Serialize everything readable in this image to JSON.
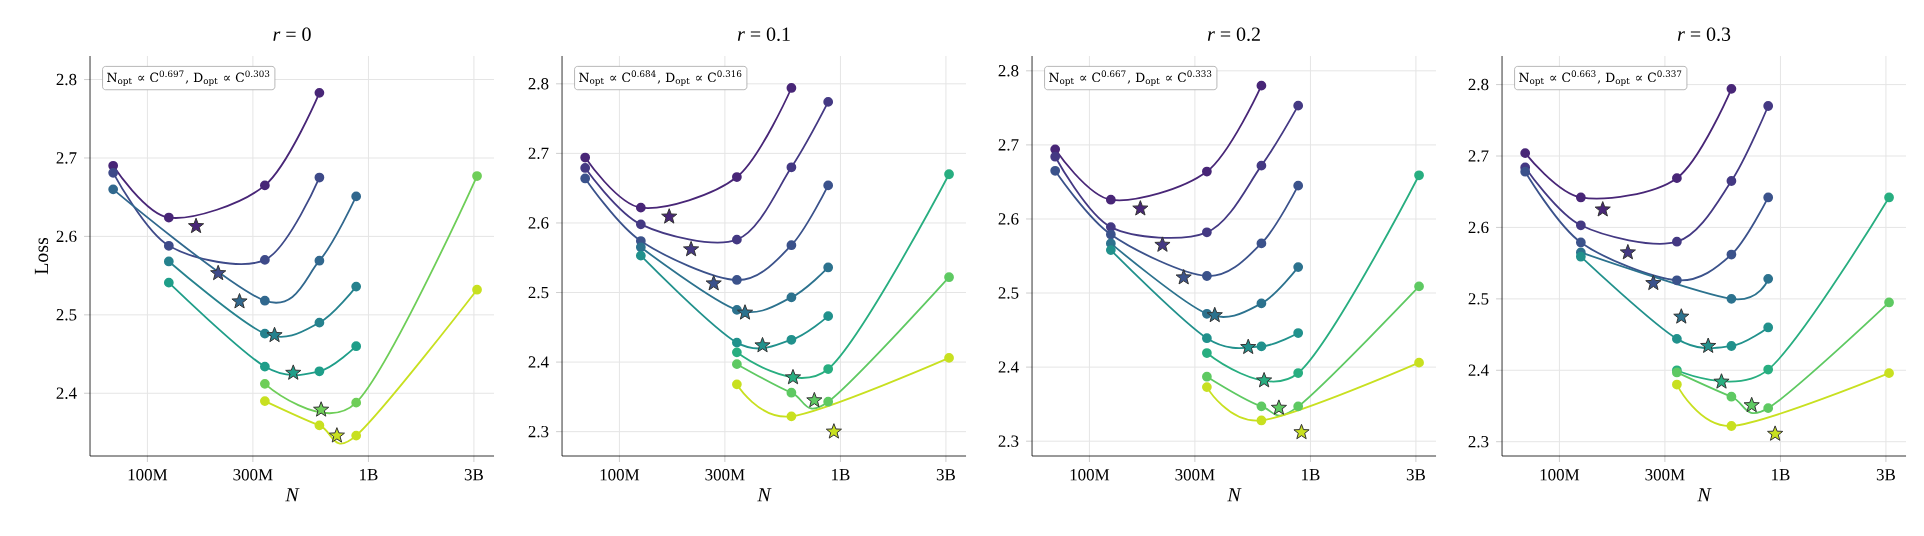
{
  "chart_data": [
    {
      "type": "line",
      "title": "*r* = 0",
      "xlabel": "N",
      "ylabel": "Loss",
      "log": "x",
      "grid": true,
      "marker": "circle",
      "xlim": [
        55000000,
        3700000000
      ],
      "xticks": [
        {
          "value": 100000000,
          "label": "100M"
        },
        {
          "value": 300000000,
          "label": "300M"
        },
        {
          "value": 1000000000,
          "label": "1B"
        },
        {
          "value": 3000000000,
          "label": "3B"
        }
      ],
      "ylim": [
        2.32,
        2.83
      ],
      "yticks": [
        2.4,
        2.5,
        2.6,
        2.7,
        2.8
      ],
      "annotations": [
        "N$_{opt}$ ∝ C$^{0.697}$,  D$_{opt}$ ∝ C$^{0.303}$"
      ],
      "series": [
        {
          "color": "#482677",
          "x": [
            70000000,
            125000000,
            340000000,
            600000000
          ],
          "values": [
            2.69,
            2.624,
            2.665,
            2.783
          ]
        },
        {
          "color": "#3e4a89",
          "x": [
            70000000,
            125000000,
            340000000,
            600000000
          ],
          "values": [
            2.681,
            2.588,
            2.57,
            2.675
          ]
        },
        {
          "color": "#31688e",
          "x": [
            70000000,
            125000000,
            340000000,
            600000000,
            880000000
          ],
          "values": [
            2.66,
            null,
            2.518,
            2.569,
            2.651
          ]
        },
        {
          "color": "#26828e",
          "x": [
            125000000,
            340000000,
            600000000,
            880000000
          ],
          "values": [
            2.568,
            2.476,
            2.49,
            2.536
          ]
        },
        {
          "color": "#1f9e89",
          "x": [
            125000000,
            340000000,
            600000000,
            880000000
          ],
          "values": [
            2.541,
            2.434,
            2.428,
            2.46
          ]
        },
        {
          "color": "#6ece58",
          "x": [
            340000000,
            880000000,
            3100000000
          ],
          "values": [
            2.412,
            2.388,
            2.677
          ]
        },
        {
          "color": "#c8e020",
          "x": [
            340000000,
            600000000,
            880000000,
            3100000000
          ],
          "values": [
            2.39,
            2.359,
            2.346,
            2.532
          ]
        },
        {
          "type": "scatter",
          "marker": "star",
          "x": [
            166000000,
            209000000,
            261000000,
            376000000,
            457000000,
            611000000,
            720000000
          ],
          "values": [
            2.613,
            2.553,
            2.517,
            2.474,
            2.426,
            2.379,
            2.346
          ],
          "colors": [
            "#482677",
            "#3e4a89",
            "#31688e",
            "#26828e",
            "#1f9e89",
            "#6ece58",
            "#c8e020"
          ]
        }
      ]
    },
    {
      "type": "line",
      "title": "*r* = 0.1",
      "xlabel": "N",
      "log": "x",
      "grid": true,
      "marker": "circle",
      "xlim": [
        55000000,
        3700000000
      ],
      "xticks": [
        {
          "value": 100000000,
          "label": "100M"
        },
        {
          "value": 300000000,
          "label": "300M"
        },
        {
          "value": 1000000000,
          "label": "1B"
        },
        {
          "value": 3000000000,
          "label": "3B"
        }
      ],
      "ylim": [
        2.265,
        2.84
      ],
      "yticks": [
        2.3,
        2.4,
        2.5,
        2.6,
        2.7,
        2.8
      ],
      "annotations": [
        "N$_{opt}$ ∝ C$^{0.684}$,  D$_{opt}$ ∝ C$^{0.316}$"
      ],
      "series": [
        {
          "color": "#482677",
          "x": [
            70000000,
            125000000,
            340000000,
            600000000
          ],
          "values": [
            2.694,
            2.622,
            2.666,
            2.794
          ]
        },
        {
          "color": "#443983",
          "x": [
            70000000,
            125000000,
            340000000,
            600000000,
            880000000
          ],
          "values": [
            2.679,
            2.598,
            2.576,
            2.68,
            2.774
          ]
        },
        {
          "color": "#3b528b",
          "x": [
            70000000,
            125000000,
            340000000,
            600000000,
            880000000
          ],
          "values": [
            2.664,
            2.574,
            2.518,
            2.568,
            2.654
          ]
        },
        {
          "color": "#2c728e",
          "x": [
            125000000,
            340000000,
            600000000,
            880000000
          ],
          "values": [
            2.565,
            2.475,
            2.493,
            2.536
          ]
        },
        {
          "color": "#21918c",
          "x": [
            125000000,
            340000000,
            600000000,
            880000000
          ],
          "values": [
            2.553,
            2.428,
            2.432,
            2.466
          ]
        },
        {
          "color": "#28ae80",
          "x": [
            340000000,
            880000000,
            3100000000
          ],
          "values": [
            2.414,
            2.39,
            2.67
          ]
        },
        {
          "color": "#5ec962",
          "x": [
            340000000,
            600000000,
            880000000,
            3100000000
          ],
          "values": [
            2.397,
            2.356,
            2.343,
            2.522
          ]
        },
        {
          "color": "#c8e020",
          "x": [
            340000000,
            600000000,
            3100000000
          ],
          "values": [
            2.368,
            2.322,
            2.406
          ]
        },
        {
          "type": "scatter",
          "marker": "star",
          "x": [
            168000000,
            211000000,
            267000000,
            370000000,
            444000000,
            610000000,
            762000000,
            934000000
          ],
          "values": [
            2.609,
            2.562,
            2.513,
            2.471,
            2.424,
            2.378,
            2.345,
            2.3
          ],
          "colors": [
            "#482677",
            "#443983",
            "#3b528b",
            "#2c728e",
            "#21918c",
            "#28ae80",
            "#5ec962",
            "#c8e020"
          ]
        }
      ]
    },
    {
      "type": "line",
      "title": "*r* = 0.2",
      "xlabel": "N",
      "log": "x",
      "grid": true,
      "marker": "circle",
      "xlim": [
        55000000,
        3700000000
      ],
      "xticks": [
        {
          "value": 100000000,
          "label": "100M"
        },
        {
          "value": 300000000,
          "label": "300M"
        },
        {
          "value": 1000000000,
          "label": "1B"
        },
        {
          "value": 3000000000,
          "label": "3B"
        }
      ],
      "ylim": [
        2.28,
        2.82
      ],
      "yticks": [
        2.3,
        2.4,
        2.5,
        2.6,
        2.7,
        2.8
      ],
      "annotations": [
        "N$_{opt}$ ∝ C$^{0.667}$,  D$_{opt}$ ∝ C$^{0.333}$"
      ],
      "series": [
        {
          "color": "#482677",
          "x": [
            70000000,
            125000000,
            340000000,
            600000000
          ],
          "values": [
            2.694,
            2.626,
            2.664,
            2.78
          ]
        },
        {
          "color": "#443983",
          "x": [
            70000000,
            125000000,
            340000000,
            600000000,
            880000000
          ],
          "values": [
            2.684,
            2.589,
            2.582,
            2.672,
            2.753
          ]
        },
        {
          "color": "#3b528b",
          "x": [
            70000000,
            125000000,
            340000000,
            600000000,
            880000000
          ],
          "values": [
            2.665,
            2.579,
            2.523,
            2.567,
            2.645
          ]
        },
        {
          "color": "#2c728e",
          "x": [
            125000000,
            340000000,
            600000000,
            880000000
          ],
          "values": [
            2.567,
            2.472,
            2.486,
            2.535
          ]
        },
        {
          "color": "#21918c",
          "x": [
            125000000,
            340000000,
            600000000,
            880000000
          ],
          "values": [
            2.558,
            2.439,
            2.428,
            2.446
          ]
        },
        {
          "color": "#28ae80",
          "x": [
            340000000,
            880000000,
            3100000000
          ],
          "values": [
            2.419,
            2.392,
            2.659
          ]
        },
        {
          "color": "#5ec962",
          "x": [
            340000000,
            600000000,
            880000000,
            3100000000
          ],
          "values": [
            2.387,
            2.347,
            2.347,
            2.509
          ]
        },
        {
          "color": "#c8e020",
          "x": [
            340000000,
            600000000,
            3100000000
          ],
          "values": [
            2.373,
            2.328,
            2.406
          ]
        },
        {
          "type": "scatter",
          "marker": "star",
          "x": [
            170000000,
            214000000,
            267000000,
            369000000,
            523000000,
            617000000,
            720000000,
            911000000
          ],
          "values": [
            2.614,
            2.565,
            2.521,
            2.47,
            2.427,
            2.382,
            2.345,
            2.312
          ],
          "colors": [
            "#482677",
            "#443983",
            "#3b528b",
            "#2c728e",
            "#21918c",
            "#28ae80",
            "#5ec962",
            "#c8e020"
          ]
        }
      ]
    },
    {
      "type": "line",
      "title": "*r* = 0.3",
      "xlabel": "N",
      "log": "x",
      "grid": true,
      "marker": "circle",
      "xlim": [
        55000000,
        3700000000
      ],
      "xticks": [
        {
          "value": 100000000,
          "label": "100M"
        },
        {
          "value": 300000000,
          "label": "300M"
        },
        {
          "value": 1000000000,
          "label": "1B"
        },
        {
          "value": 3000000000,
          "label": "3B"
        }
      ],
      "ylim": [
        2.28,
        2.84
      ],
      "yticks": [
        2.3,
        2.4,
        2.5,
        2.6,
        2.7,
        2.8
      ],
      "annotations": [
        "N$_{opt}$ ∝ C$^{0.663}$,  D$_{opt}$ ∝ C$^{0.337}$"
      ],
      "series": [
        {
          "color": "#482677",
          "x": [
            70000000,
            125000000,
            340000000,
            600000000
          ],
          "values": [
            2.704,
            2.642,
            2.669,
            2.794
          ]
        },
        {
          "color": "#443983",
          "x": [
            70000000,
            125000000,
            340000000,
            600000000,
            880000000
          ],
          "values": [
            2.684,
            2.603,
            2.58,
            2.665,
            2.77
          ]
        },
        {
          "color": "#3b528b",
          "x": [
            70000000,
            125000000,
            340000000,
            600000000,
            880000000
          ],
          "values": [
            2.678,
            2.579,
            2.526,
            2.562,
            2.642
          ]
        },
        {
          "color": "#2c728e",
          "x": [
            125000000,
            340000000,
            600000000,
            880000000
          ],
          "values": [
            2.565,
            null,
            2.5,
            2.528
          ]
        },
        {
          "color": "#21918c",
          "x": [
            125000000,
            340000000,
            600000000,
            880000000
          ],
          "values": [
            2.559,
            2.444,
            2.434,
            2.46
          ]
        },
        {
          "color": "#28ae80",
          "x": [
            340000000,
            880000000,
            3100000000
          ],
          "values": [
            2.4,
            2.401,
            2.642
          ]
        },
        {
          "color": "#5ec962",
          "x": [
            340000000,
            600000000,
            880000000,
            3100000000
          ],
          "values": [
            2.397,
            2.363,
            2.347,
            2.495
          ]
        },
        {
          "color": "#c8e020",
          "x": [
            340000000,
            600000000,
            3100000000
          ],
          "values": [
            2.38,
            2.322,
            2.396
          ]
        },
        {
          "type": "scatter",
          "marker": "star",
          "x": [
            157000000,
            204000000,
            266000000,
            356000000,
            471000000,
            541000000,
            741000000,
            946000000
          ],
          "values": [
            2.625,
            2.565,
            2.522,
            2.475,
            2.434,
            2.384,
            2.351,
            2.311
          ],
          "colors": [
            "#482677",
            "#443983",
            "#3b528b",
            "#2c728e",
            "#21918c",
            "#28ae80",
            "#5ec962",
            "#c8e020"
          ]
        }
      ]
    }
  ]
}
